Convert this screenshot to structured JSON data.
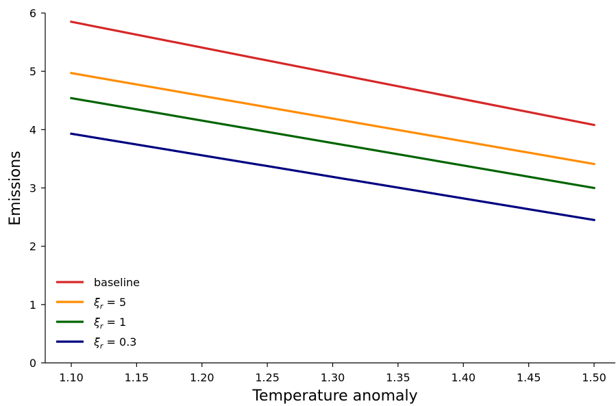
{
  "chart_data": {
    "type": "line",
    "xlabel": "Temperature anomaly",
    "ylabel": "Emissions",
    "xlim": [
      1.08,
      1.515
    ],
    "ylim": [
      0,
      6
    ],
    "xticks": [
      "1.10",
      "1.15",
      "1.20",
      "1.25",
      "1.30",
      "1.35",
      "1.40",
      "1.45",
      "1.50"
    ],
    "yticks": [
      "0",
      "1",
      "2",
      "3",
      "4",
      "5",
      "6"
    ],
    "grid": false,
    "legend_position": "lower-left",
    "series": [
      {
        "name": "baseline",
        "legend": {
          "main": "baseline",
          "sub": "",
          "rest": ""
        },
        "color": "#d62728",
        "x": [
          1.1,
          1.5
        ],
        "y": [
          5.85,
          4.08
        ]
      },
      {
        "name": "ξr = 5",
        "legend": {
          "main": "ξ",
          "sub": "r",
          "rest": " = 5"
        },
        "color": "#ff8c00",
        "x": [
          1.1,
          1.5
        ],
        "y": [
          4.97,
          3.41
        ]
      },
      {
        "name": "ξr = 1",
        "legend": {
          "main": "ξ",
          "sub": "r",
          "rest": " = 1"
        },
        "color": "#006400",
        "x": [
          1.1,
          1.5
        ],
        "y": [
          4.54,
          3.0
        ]
      },
      {
        "name": "ξr = 0.3",
        "legend": {
          "main": "ξ",
          "sub": "r",
          "rest": " = 0.3"
        },
        "color": "#000080",
        "x": [
          1.1,
          1.5
        ],
        "y": [
          3.93,
          2.45
        ]
      }
    ]
  }
}
